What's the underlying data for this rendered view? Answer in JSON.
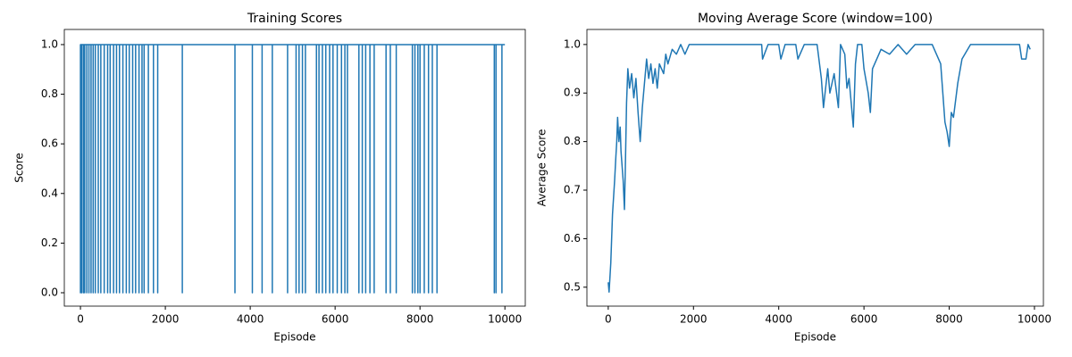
{
  "chart_data": [
    {
      "type": "line",
      "title": "Training Scores",
      "xlabel": "Episode",
      "ylabel": "Score",
      "x": [
        0,
        0,
        0,
        30,
        30,
        30,
        70,
        70,
        70,
        100,
        100,
        100,
        150,
        150,
        150,
        200,
        200,
        200,
        250,
        250,
        250,
        300,
        300,
        300,
        350,
        350,
        350,
        420,
        420,
        420,
        480,
        480,
        480,
        560,
        560,
        560,
        640,
        640,
        640,
        700,
        700,
        700,
        780,
        780,
        780,
        850,
        850,
        850,
        920,
        920,
        920,
        1000,
        1000,
        1000,
        1080,
        1080,
        1080,
        1150,
        1150,
        1150,
        1230,
        1230,
        1230,
        1300,
        1300,
        1300,
        1380,
        1380,
        1380,
        1450,
        1450,
        1450,
        1500,
        1500,
        1500,
        1600,
        1600,
        1600,
        1720,
        1720,
        1720,
        1820,
        1820,
        1820,
        2400,
        2400,
        2400,
        3640,
        3640,
        3640,
        4050,
        4050,
        4050,
        4280,
        4280,
        4280,
        4520,
        4520,
        4520,
        4880,
        4880,
        4880,
        5080,
        5080,
        5080,
        5150,
        5150,
        5150,
        5230,
        5230,
        5230,
        5300,
        5300,
        5300,
        5560,
        5560,
        5560,
        5620,
        5620,
        5620,
        5700,
        5700,
        5700,
        5780,
        5780,
        5780,
        5870,
        5870,
        5870,
        5950,
        5950,
        5950,
        6050,
        6050,
        6050,
        6150,
        6150,
        6150,
        6230,
        6230,
        6230,
        6290,
        6290,
        6290,
        6560,
        6560,
        6560,
        6640,
        6640,
        6640,
        6720,
        6720,
        6720,
        6820,
        6820,
        6820,
        6920,
        6920,
        6920,
        7200,
        7200,
        7200,
        7300,
        7300,
        7300,
        7440,
        7440,
        7440,
        7820,
        7820,
        7820,
        7880,
        7880,
        7880,
        7950,
        7950,
        7950,
        8000,
        8000,
        8000,
        8100,
        8100,
        8100,
        8200,
        8200,
        8200,
        8290,
        8290,
        8290,
        8400,
        8400,
        8400,
        9750,
        9750,
        9750,
        9790,
        9790,
        9790,
        9930,
        9930,
        9930,
        10000
      ],
      "series": [
        {
          "color": "#1f77b4",
          "values": [
            1,
            0,
            1,
            1,
            0,
            1,
            1,
            0,
            1,
            1,
            0,
            1,
            1,
            0,
            1,
            1,
            0,
            1,
            1,
            0,
            1,
            1,
            0,
            1,
            1,
            0,
            1,
            1,
            0,
            1,
            1,
            0,
            1,
            1,
            0,
            1,
            1,
            0,
            1,
            1,
            0,
            1,
            1,
            0,
            1,
            1,
            0,
            1,
            1,
            0,
            1,
            1,
            0,
            1,
            1,
            0,
            1,
            1,
            0,
            1,
            1,
            0,
            1,
            1,
            0,
            1,
            1,
            0,
            1,
            1,
            0,
            1,
            1,
            0,
            1,
            1,
            0,
            1,
            1,
            0,
            1,
            1,
            0,
            1,
            1,
            0,
            1,
            1,
            0,
            1,
            1,
            0,
            1,
            1,
            0,
            1,
            1,
            0,
            1,
            1,
            0,
            1,
            1,
            0,
            1,
            1,
            0,
            1,
            1,
            0,
            1,
            1,
            0,
            1,
            1,
            0,
            1,
            1,
            0,
            1,
            1,
            0,
            1,
            1,
            0,
            1,
            1,
            0,
            1,
            1,
            0,
            1,
            1,
            0,
            1,
            1,
            0,
            1,
            1,
            0,
            1,
            1,
            0,
            1,
            1,
            0,
            1,
            1,
            0,
            1,
            1,
            0,
            1,
            1,
            0,
            1,
            1,
            0,
            1,
            1,
            0,
            1,
            1,
            0,
            1,
            1,
            0,
            1,
            1,
            0,
            1,
            1,
            0,
            1,
            1,
            0,
            1,
            1,
            0,
            1,
            1,
            0,
            1,
            1,
            0,
            1,
            1,
            0,
            1,
            1,
            0,
            1,
            1,
            0,
            1,
            1,
            0,
            1,
            1,
            0,
            1,
            1
          ]
        }
      ],
      "xlim": [
        -380,
        10480
      ],
      "ylim": [
        -0.054,
        1.061
      ],
      "xticks": [
        0,
        2000,
        4000,
        6000,
        8000,
        10000
      ],
      "yticks": [
        {
          "value": 0,
          "label": "0.0"
        },
        0.2,
        0.4,
        0.6,
        0.8,
        {
          "value": 1,
          "label": "1.0"
        }
      ]
    },
    {
      "type": "line",
      "title": "Moving Average Score (window=100)",
      "xlabel": "Episode",
      "ylabel": "Average Score",
      "x": [
        0,
        20,
        60,
        100,
        150,
        180,
        200,
        220,
        250,
        280,
        300,
        350,
        380,
        400,
        430,
        460,
        500,
        550,
        600,
        650,
        700,
        750,
        800,
        850,
        900,
        950,
        1000,
        1050,
        1100,
        1150,
        1200,
        1300,
        1350,
        1400,
        1500,
        1600,
        1700,
        1800,
        1900,
        3600,
        3620,
        3750,
        4000,
        4050,
        4150,
        4400,
        4450,
        4600,
        4900,
        5000,
        5050,
        5150,
        5200,
        5300,
        5400,
        5450,
        5550,
        5600,
        5650,
        5700,
        5750,
        5800,
        5850,
        5950,
        6000,
        6100,
        6150,
        6200,
        6300,
        6400,
        6600,
        6800,
        7000,
        7200,
        7600,
        7800,
        7900,
        7950,
        8000,
        8050,
        8100,
        8200,
        8300,
        8500,
        9650,
        9700,
        9800,
        9850,
        9900
      ],
      "series": [
        {
          "color": "#1f77b4",
          "values": [
            0.51,
            0.49,
            0.55,
            0.65,
            0.72,
            0.77,
            0.8,
            0.85,
            0.8,
            0.83,
            0.78,
            0.72,
            0.66,
            0.74,
            0.88,
            0.95,
            0.91,
            0.94,
            0.89,
            0.93,
            0.86,
            0.8,
            0.87,
            0.92,
            0.97,
            0.93,
            0.96,
            0.92,
            0.95,
            0.91,
            0.96,
            0.94,
            0.98,
            0.96,
            0.99,
            0.98,
            1.0,
            0.98,
            1.0,
            1.0,
            0.97,
            1.0,
            1.0,
            0.97,
            1.0,
            1.0,
            0.97,
            1.0,
            1.0,
            0.93,
            0.87,
            0.95,
            0.9,
            0.94,
            0.87,
            1.0,
            0.98,
            0.91,
            0.93,
            0.88,
            0.83,
            0.96,
            1.0,
            1.0,
            0.95,
            0.9,
            0.86,
            0.95,
            0.97,
            0.99,
            0.98,
            1.0,
            0.98,
            1.0,
            1.0,
            0.96,
            0.84,
            0.82,
            0.79,
            0.86,
            0.85,
            0.92,
            0.97,
            1.0,
            1.0,
            0.97,
            0.97,
            1.0,
            0.99
          ]
        }
      ],
      "xlim": [
        -500,
        10210
      ],
      "ylim": [
        0.461,
        1.031
      ],
      "xticks": [
        0,
        2000,
        4000,
        6000,
        8000,
        10000
      ],
      "yticks": [
        0.5,
        0.6,
        0.7,
        0.8,
        0.9,
        {
          "value": 1,
          "label": "1.0"
        }
      ]
    }
  ]
}
